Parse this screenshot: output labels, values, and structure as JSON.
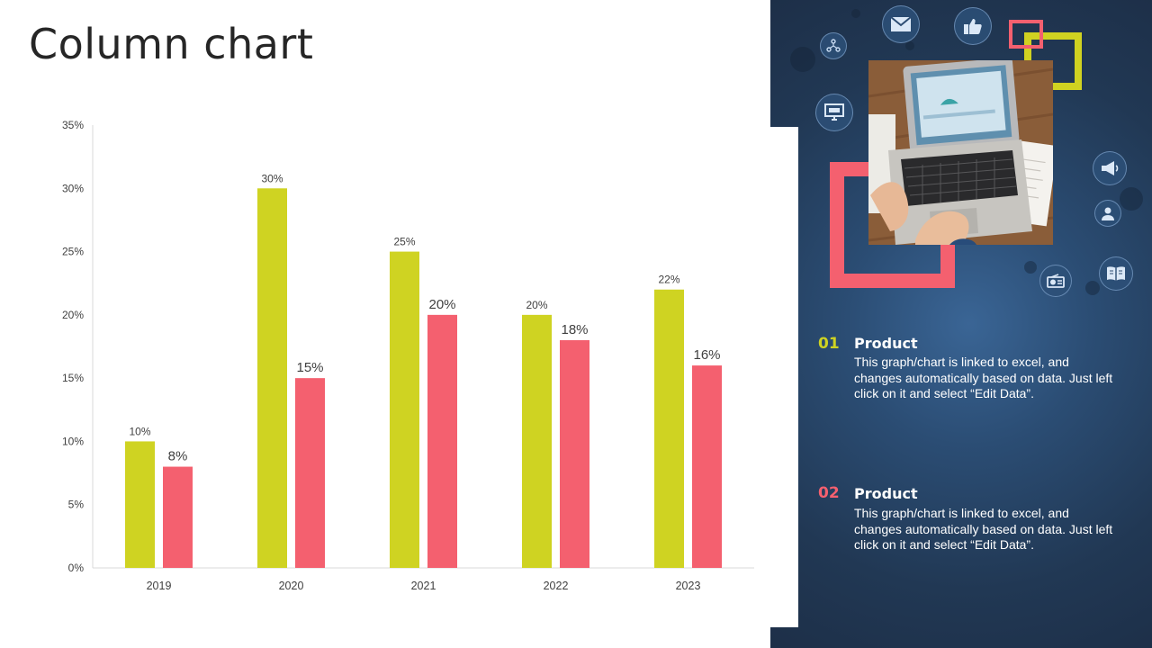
{
  "page": {
    "title": "Column chart"
  },
  "chart_data": {
    "type": "bar",
    "categories": [
      "2019",
      "2020",
      "2021",
      "2022",
      "2023"
    ],
    "series": [
      {
        "values": [
          10,
          30,
          25,
          20,
          22
        ],
        "color": "#cfd322"
      },
      {
        "values": [
          8,
          15,
          20,
          18,
          16
        ],
        "color": "#f4606f"
      }
    ],
    "value_labels": [
      [
        "10%",
        "30%",
        "25%",
        "20%",
        "22%"
      ],
      [
        "8%",
        "15%",
        "20%",
        "18%",
        "16%"
      ]
    ],
    "y_ticks": [
      "0%",
      "5%",
      "10%",
      "15%",
      "20%",
      "25%",
      "30%",
      "35%"
    ],
    "ylim": [
      0,
      35
    ],
    "xlabel": "",
    "ylabel": "",
    "grid": false,
    "legend": "none"
  },
  "legend_items": [
    {
      "number": "01",
      "heading": "Product",
      "text": "This graph/chart is linked to excel, and changes automatically based on data. Just left click on it and select “Edit Data”.",
      "color": "#cfd322"
    },
    {
      "number": "02",
      "heading": "Product",
      "text": "This graph/chart is linked to excel, and changes automatically based on data. Just left click on it and select “Edit Data”.",
      "color": "#f4606f"
    }
  ],
  "decor_icons": [
    "network-icon",
    "email-icon",
    "thumbs-up-icon",
    "monitor-icon",
    "megaphone-icon",
    "user-icon",
    "radio-icon",
    "book-icon"
  ]
}
